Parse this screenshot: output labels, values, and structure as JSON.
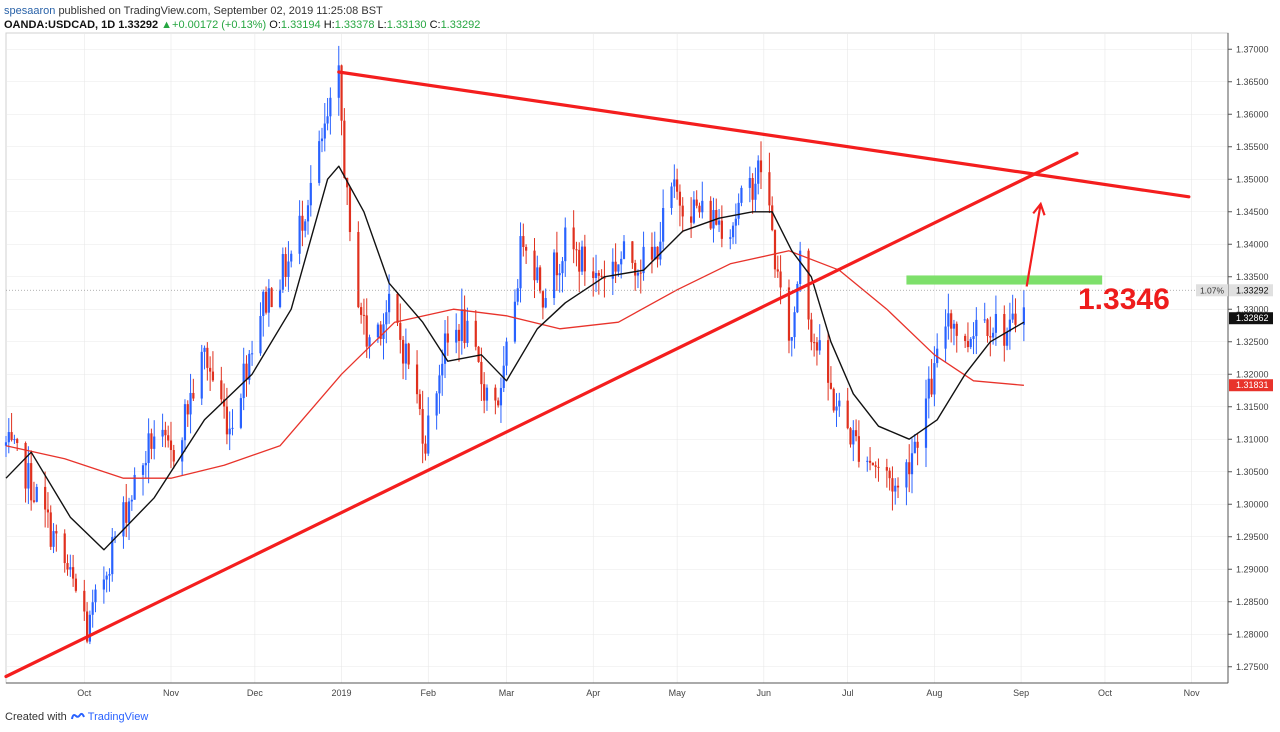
{
  "header": {
    "author": "spesaaron",
    "published": "published on TradingView.com, September 02, 2019 11:25:08 BST"
  },
  "ticker": {
    "symbol": "OANDA:USDCAD, 1D",
    "last": "1.33292",
    "change_icon": "triangle-up-icon",
    "change": "+0.00172 (+0.13%)",
    "o_label": "O:",
    "o": "1.33194",
    "h_label": "H:",
    "h": "1.33378",
    "l_label": "L:",
    "l": "1.33130",
    "c_label": "C:",
    "c": "1.33292"
  },
  "footer": {
    "prefix": "Created with",
    "brand": "TradingView",
    "icon": "tradingview-logo-icon"
  },
  "colors": {
    "up": "#2962ff",
    "down": "#e0301e",
    "line": "#f41e1e",
    "ema": "#111111",
    "sma": "#e8332b",
    "zone": "#7ee06b",
    "grid": "#e8e8e8"
  },
  "chart_data": {
    "type": "candlestick",
    "instrument": "OANDA:USDCAD, 1D",
    "ylim": [
      1.2725,
      1.3725
    ],
    "y_ticks": [
      1.275,
      1.28,
      1.285,
      1.29,
      1.295,
      1.3,
      1.305,
      1.31,
      1.315,
      1.32,
      1.325,
      1.33,
      1.335,
      1.34,
      1.345,
      1.35,
      1.355,
      1.36,
      1.365,
      1.37
    ],
    "x_labels": [
      {
        "label": "Oct",
        "date": "2018-10-01"
      },
      {
        "label": "Nov",
        "date": "2018-11-01"
      },
      {
        "label": "Dec",
        "date": "2018-12-01"
      },
      {
        "label": "2019",
        "date": "2019-01-01"
      },
      {
        "label": "Feb",
        "date": "2019-02-01"
      },
      {
        "label": "Mar",
        "date": "2019-03-01"
      },
      {
        "label": "Apr",
        "date": "2019-04-01"
      },
      {
        "label": "May",
        "date": "2019-05-01"
      },
      {
        "label": "Jun",
        "date": "2019-06-01"
      },
      {
        "label": "Jul",
        "date": "2019-07-01"
      },
      {
        "label": "Aug",
        "date": "2019-08-01"
      },
      {
        "label": "Sep",
        "date": "2019-09-01"
      },
      {
        "label": "Oct",
        "date": "2019-10-01"
      },
      {
        "label": "Nov",
        "date": "2019-11-01"
      }
    ],
    "price_path": [
      [
        "2018-09-03",
        1.309
      ],
      [
        "2018-09-10",
        1.305
      ],
      [
        "2018-09-20",
        1.295
      ],
      [
        "2018-10-01",
        1.283
      ],
      [
        "2018-10-02",
        1.28
      ],
      [
        "2018-10-12",
        1.295
      ],
      [
        "2018-10-26",
        1.311
      ],
      [
        "2018-11-01",
        1.307
      ],
      [
        "2018-11-13",
        1.323
      ],
      [
        "2018-11-22",
        1.312
      ],
      [
        "2018-12-03",
        1.33
      ],
      [
        "2018-12-14",
        1.338
      ],
      [
        "2018-12-31",
        1.365
      ],
      [
        "2019-01-04",
        1.34
      ],
      [
        "2019-01-10",
        1.325
      ],
      [
        "2019-01-18",
        1.33
      ],
      [
        "2019-01-25",
        1.322
      ],
      [
        "2019-01-31",
        1.31
      ],
      [
        "2019-02-06",
        1.323
      ],
      [
        "2019-02-13",
        1.328
      ],
      [
        "2019-02-21",
        1.318
      ],
      [
        "2019-02-27",
        1.316
      ],
      [
        "2019-03-07",
        1.342
      ],
      [
        "2019-03-14",
        1.333
      ],
      [
        "2019-03-22",
        1.34
      ],
      [
        "2019-04-02",
        1.335
      ],
      [
        "2019-04-12",
        1.338
      ],
      [
        "2019-04-22",
        1.337
      ],
      [
        "2019-04-29",
        1.348
      ],
      [
        "2019-05-09",
        1.345
      ],
      [
        "2019-05-20",
        1.343
      ],
      [
        "2019-05-31",
        1.352
      ],
      [
        "2019-06-03",
        1.345
      ],
      [
        "2019-06-07",
        1.331
      ],
      [
        "2019-06-11",
        1.325
      ],
      [
        "2019-06-14",
        1.34
      ],
      [
        "2019-06-18",
        1.327
      ],
      [
        "2019-06-25",
        1.317
      ],
      [
        "2019-07-03",
        1.31
      ],
      [
        "2019-07-11",
        1.306
      ],
      [
        "2019-07-16",
        1.304
      ],
      [
        "2019-07-19",
        1.302
      ],
      [
        "2019-07-26",
        1.311
      ],
      [
        "2019-08-01",
        1.32
      ],
      [
        "2019-08-06",
        1.33
      ],
      [
        "2019-08-12",
        1.324
      ],
      [
        "2019-08-16",
        1.329
      ],
      [
        "2019-08-22",
        1.328
      ],
      [
        "2019-08-28",
        1.326
      ],
      [
        "2019-09-02",
        1.3329
      ]
    ],
    "ema_path": [
      [
        "2018-09-03",
        1.304
      ],
      [
        "2018-09-12",
        1.308
      ],
      [
        "2018-09-26",
        1.298
      ],
      [
        "2018-10-08",
        1.293
      ],
      [
        "2018-10-26",
        1.301
      ],
      [
        "2018-11-13",
        1.313
      ],
      [
        "2018-11-30",
        1.32
      ],
      [
        "2018-12-14",
        1.33
      ],
      [
        "2018-12-27",
        1.35
      ],
      [
        "2018-12-31",
        1.352
      ],
      [
        "2019-01-09",
        1.345
      ],
      [
        "2019-01-18",
        1.334
      ],
      [
        "2019-01-30",
        1.328
      ],
      [
        "2019-02-08",
        1.322
      ],
      [
        "2019-02-20",
        1.323
      ],
      [
        "2019-03-01",
        1.319
      ],
      [
        "2019-03-12",
        1.327
      ],
      [
        "2019-03-22",
        1.331
      ],
      [
        "2019-04-05",
        1.335
      ],
      [
        "2019-04-19",
        1.336
      ],
      [
        "2019-05-03",
        1.342
      ],
      [
        "2019-05-16",
        1.344
      ],
      [
        "2019-05-28",
        1.345
      ],
      [
        "2019-06-04",
        1.345
      ],
      [
        "2019-06-11",
        1.339
      ],
      [
        "2019-06-18",
        1.335
      ],
      [
        "2019-06-25",
        1.325
      ],
      [
        "2019-07-03",
        1.317
      ],
      [
        "2019-07-12",
        1.312
      ],
      [
        "2019-07-23",
        1.31
      ],
      [
        "2019-08-02",
        1.313
      ],
      [
        "2019-08-12",
        1.32
      ],
      [
        "2019-08-21",
        1.325
      ],
      [
        "2019-09-02",
        1.328
      ]
    ],
    "sma_path": [
      [
        "2018-09-03",
        1.309
      ],
      [
        "2018-09-24",
        1.307
      ],
      [
        "2018-10-15",
        1.304
      ],
      [
        "2018-11-01",
        1.304
      ],
      [
        "2018-11-20",
        1.306
      ],
      [
        "2018-12-10",
        1.309
      ],
      [
        "2019-01-01",
        1.32
      ],
      [
        "2019-01-20",
        1.328
      ],
      [
        "2019-02-10",
        1.33
      ],
      [
        "2019-03-01",
        1.329
      ],
      [
        "2019-03-20",
        1.327
      ],
      [
        "2019-04-10",
        1.328
      ],
      [
        "2019-05-01",
        1.333
      ],
      [
        "2019-05-20",
        1.337
      ],
      [
        "2019-06-10",
        1.339
      ],
      [
        "2019-06-28",
        1.336
      ],
      [
        "2019-07-15",
        1.33
      ],
      [
        "2019-08-01",
        1.323
      ],
      [
        "2019-08-15",
        1.319
      ],
      [
        "2019-09-02",
        1.3183
      ]
    ],
    "trendlines": [
      {
        "name": "resistance",
        "from": [
          "2018-12-31",
          1.3665
        ],
        "to": [
          "2019-10-31",
          1.3473
        ]
      },
      {
        "name": "support",
        "from": [
          "2018-09-03",
          1.2735
        ],
        "to": [
          "2019-09-21",
          1.354
        ]
      }
    ],
    "zone": {
      "from": "2019-07-22",
      "to": "2019-09-30",
      "y1": 1.3338,
      "y2": 1.3352
    },
    "arrow": {
      "from": [
        "2019-09-03",
        1.3335
      ],
      "to": [
        "2019-09-08",
        1.3462
      ]
    },
    "annotation": "1.3346",
    "price_labels": [
      {
        "value": "1.33292",
        "note": "1.07%",
        "kind": "last"
      },
      {
        "value": "1.32862",
        "kind": "ema"
      },
      {
        "value": "1.31831",
        "kind": "sma"
      }
    ]
  }
}
